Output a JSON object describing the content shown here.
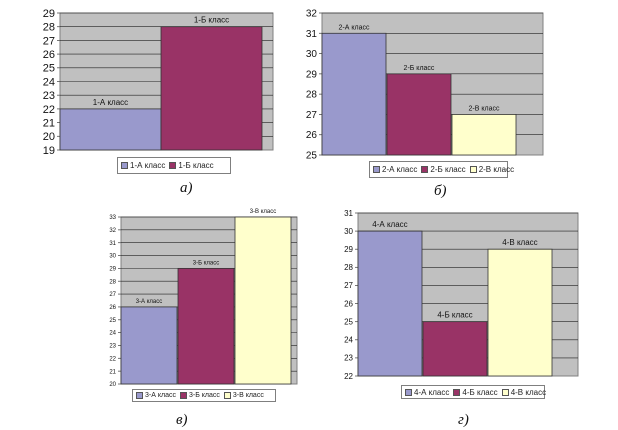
{
  "chart_data": [
    {
      "type": "bar",
      "categories": [
        "1-А класс",
        "1-Б класс"
      ],
      "values": [
        22,
        28
      ],
      "colors": [
        "#9999cc",
        "#993366"
      ],
      "ylim": [
        19,
        29
      ],
      "yticks": [
        19,
        20,
        21,
        22,
        23,
        24,
        25,
        26,
        27,
        28,
        29
      ],
      "legend": [
        "1-А класс",
        "1-Б класс"
      ],
      "caption": "а)",
      "grid": true
    },
    {
      "type": "bar",
      "categories": [
        "2-А класс",
        "2-Б класс",
        "2-В класс"
      ],
      "values": [
        31,
        29,
        27
      ],
      "colors": [
        "#9999cc",
        "#993366",
        "#ffffcc"
      ],
      "ylim": [
        25,
        32
      ],
      "yticks": [
        25,
        26,
        27,
        28,
        29,
        30,
        31,
        32
      ],
      "legend": [
        "2-А класс",
        "2-Б класс",
        "2-В класс"
      ],
      "caption": "б)",
      "grid": true
    },
    {
      "type": "bar",
      "categories": [
        "3-А класс",
        "3-Б класс",
        "3-В класс"
      ],
      "values": [
        26,
        29,
        33
      ],
      "colors": [
        "#9999cc",
        "#993366",
        "#ffffcc"
      ],
      "ylim": [
        20,
        33
      ],
      "yticks": [
        20,
        21,
        22,
        23,
        24,
        25,
        26,
        27,
        28,
        29,
        30,
        31,
        32,
        33
      ],
      "legend": [
        "3-А класс",
        "3-Б класс",
        "3-В класс"
      ],
      "caption": "в)",
      "grid": true
    },
    {
      "type": "bar",
      "categories": [
        "4-А класс",
        "4-Б класс",
        "4-В класс"
      ],
      "values": [
        30,
        25,
        29
      ],
      "colors": [
        "#9999cc",
        "#993366",
        "#ffffcc"
      ],
      "ylim": [
        22,
        31
      ],
      "yticks": [
        22,
        23,
        24,
        25,
        26,
        27,
        28,
        29,
        30,
        31
      ],
      "legend": [
        "4-А класс",
        "4-Б класс",
        "4-В класс"
      ],
      "caption": "г)",
      "grid": true
    }
  ]
}
